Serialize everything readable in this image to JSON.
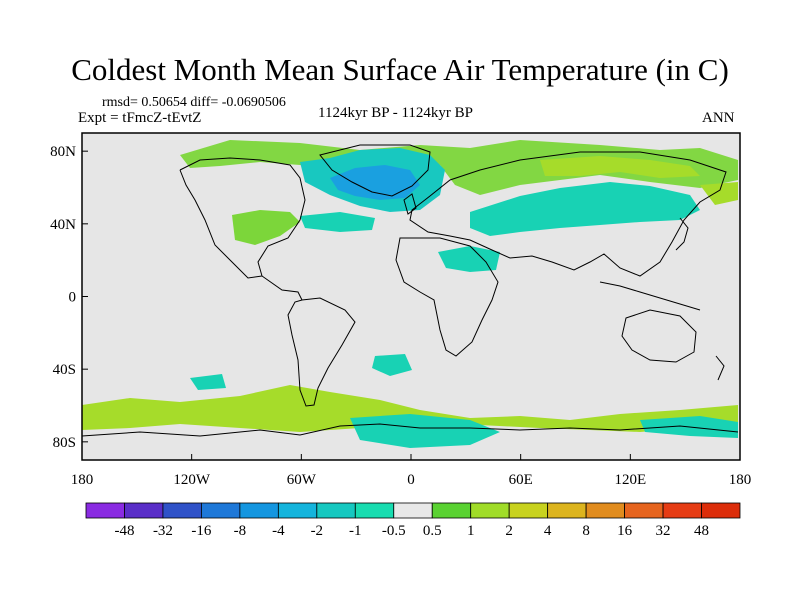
{
  "title": "Coldest Month Mean Surface Air Temperature (in C)",
  "stats": {
    "rmsd_line": "rmsd= 0.50654  diff= -0.0690506"
  },
  "experiment": "Expt = tFmcZ-tEvtZ",
  "period": "1124kyr BP - 1124kyr BP",
  "season": "ANN",
  "axes": {
    "x_ticks": [
      "180",
      "120W",
      "60W",
      "0",
      "60E",
      "120E",
      "180"
    ],
    "y_ticks": [
      "80N",
      "40N",
      "0",
      "40S",
      "80S"
    ]
  },
  "colorbar": {
    "labels": [
      "-48",
      "-32",
      "-16",
      "-8",
      "-4",
      "-2",
      "-1",
      "-0.5",
      "0.5",
      "1",
      "2",
      "4",
      "8",
      "16",
      "32",
      "48"
    ],
    "colors": [
      "#8a2be2",
      "#5a2ec8",
      "#2f52c8",
      "#1e78d8",
      "#1496e0",
      "#14b4dc",
      "#16c8c0",
      "#18dcb0",
      "#e8e8e8",
      "#5ad232",
      "#a0dc28",
      "#c8d21e",
      "#dcb41e",
      "#e18c1e",
      "#e6641e",
      "#e63c14",
      "#dc2d0a"
    ]
  },
  "colors": {
    "ocean": "#e6e6e6",
    "coast": "#000000"
  }
}
